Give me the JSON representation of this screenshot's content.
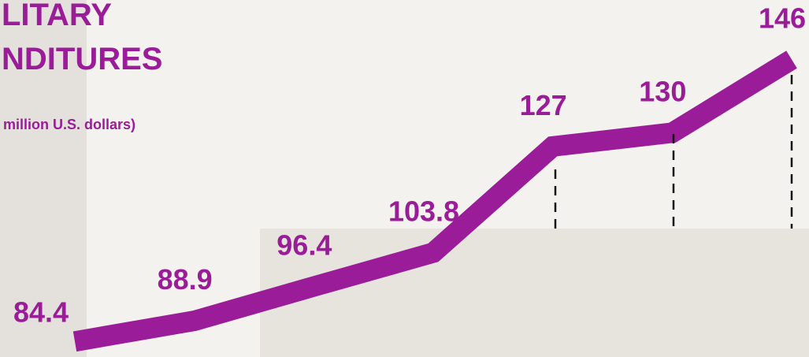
{
  "chart_data": {
    "type": "line",
    "title": [
      "LITARY",
      "NDITURES"
    ],
    "subtitle": "million U.S. dollars)",
    "categories": [
      null,
      null,
      null,
      null,
      null,
      null,
      null
    ],
    "values": [
      84.4,
      88.9,
      96.4,
      103.8,
      127,
      130,
      146
    ],
    "color": "#9a1c98",
    "ylim": [
      81,
      159
    ]
  }
}
